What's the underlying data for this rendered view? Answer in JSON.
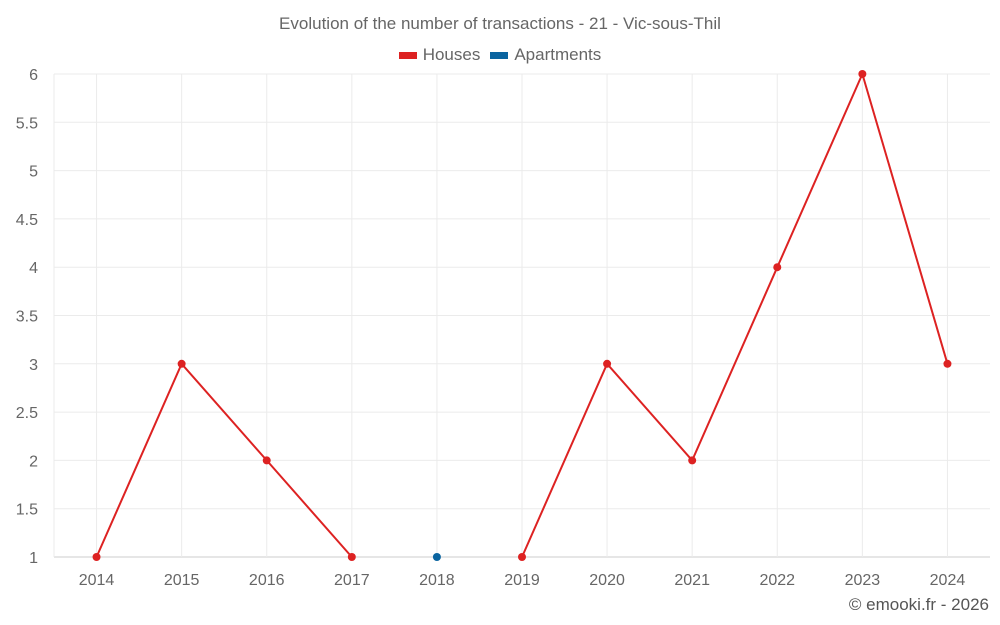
{
  "chart_data": {
    "type": "line",
    "title": "Evolution of the number of transactions - 21 - Vic-sous-Thil",
    "categories": [
      "2014",
      "2015",
      "2016",
      "2017",
      "2018",
      "2019",
      "2020",
      "2021",
      "2022",
      "2023",
      "2024"
    ],
    "series": [
      {
        "name": "Houses",
        "color": "#dd2222",
        "values": [
          1,
          3,
          2,
          1,
          null,
          1,
          3,
          2,
          4,
          6,
          3
        ]
      },
      {
        "name": "Apartments",
        "color": "#0a64a0",
        "values": [
          null,
          null,
          null,
          null,
          1,
          null,
          null,
          null,
          null,
          null,
          null
        ]
      }
    ],
    "ylim": [
      1,
      6
    ],
    "yticks": [
      "1",
      "1.5",
      "2",
      "2.5",
      "3",
      "3.5",
      "4",
      "4.5",
      "5",
      "5.5",
      "6"
    ],
    "xlabel": "",
    "ylabel": "",
    "grid": true,
    "legend": "top-center"
  },
  "credit": "© emooki.fr - 2026"
}
